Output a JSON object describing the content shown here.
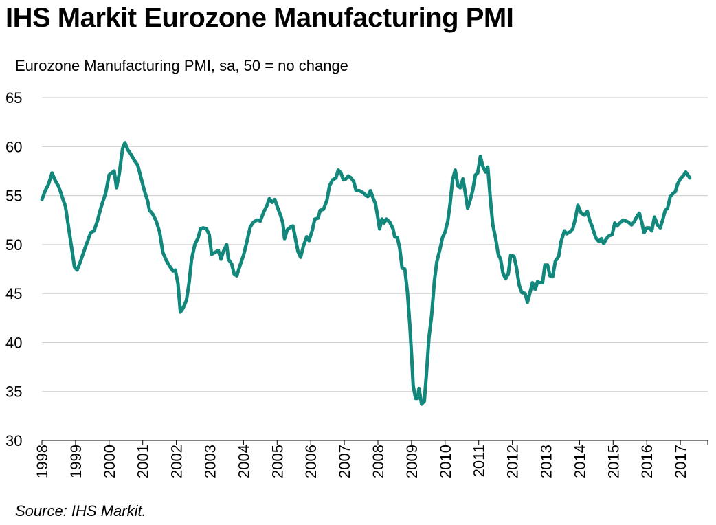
{
  "title": "IHS Markit Eurozone Manufacturing PMI",
  "subtitle": "Eurozone Manufacturing PMI, sa, 50 = no change",
  "source": "Source: IHS Markit.",
  "chart_data": {
    "type": "line",
    "title": "IHS Markit Eurozone Manufacturing PMI",
    "ylabel": "Eurozone Manufacturing PMI, sa, 50 = no change",
    "xlabel": "",
    "ylim": [
      30,
      65
    ],
    "yticks": [
      "30",
      "35",
      "40",
      "45",
      "50",
      "55",
      "60",
      "65"
    ],
    "xticks": [
      "1998",
      "1999",
      "2000",
      "2001",
      "2002",
      "2003",
      "2004",
      "2005",
      "2006",
      "2007",
      "2008",
      "2009",
      "2010",
      "2011",
      "2012",
      "2013",
      "2014",
      "2015",
      "2016",
      "2017"
    ],
    "xlim": [
      1998.0,
      2017.95
    ],
    "grid": "horizontal",
    "line_color": "#12877c",
    "series": [
      {
        "name": "",
        "points": [
          [
            1998.0,
            54.6
          ],
          [
            1998.1,
            55.5
          ],
          [
            1998.2,
            56.2
          ],
          [
            1998.3,
            57.3
          ],
          [
            1998.4,
            56.5
          ],
          [
            1998.5,
            55.9
          ],
          [
            1998.6,
            54.9
          ],
          [
            1998.7,
            53.9
          ],
          [
            1998.8,
            51.6
          ],
          [
            1998.9,
            49.3
          ],
          [
            1998.97,
            47.7
          ],
          [
            1999.05,
            47.4
          ],
          [
            1999.15,
            48.3
          ],
          [
            1999.3,
            49.8
          ],
          [
            1999.45,
            51.2
          ],
          [
            1999.55,
            51.4
          ],
          [
            1999.65,
            52.4
          ],
          [
            1999.75,
            53.7
          ],
          [
            1999.9,
            55.3
          ],
          [
            2000.0,
            57.1
          ],
          [
            2000.15,
            57.5
          ],
          [
            2000.22,
            55.8
          ],
          [
            2000.3,
            57.2
          ],
          [
            2000.4,
            59.8
          ],
          [
            2000.47,
            60.4
          ],
          [
            2000.55,
            59.7
          ],
          [
            2000.65,
            59.2
          ],
          [
            2000.75,
            58.6
          ],
          [
            2000.85,
            58.1
          ],
          [
            2000.95,
            56.8
          ],
          [
            2001.05,
            55.5
          ],
          [
            2001.15,
            54.4
          ],
          [
            2001.2,
            53.5
          ],
          [
            2001.3,
            53.1
          ],
          [
            2001.4,
            52.4
          ],
          [
            2001.5,
            51.3
          ],
          [
            2001.6,
            49.2
          ],
          [
            2001.7,
            48.4
          ],
          [
            2001.8,
            47.8
          ],
          [
            2001.9,
            47.3
          ],
          [
            2001.97,
            47.4
          ],
          [
            2002.05,
            46.0
          ],
          [
            2002.12,
            43.1
          ],
          [
            2002.2,
            43.5
          ],
          [
            2002.3,
            44.3
          ],
          [
            2002.38,
            46.1
          ],
          [
            2002.45,
            48.4
          ],
          [
            2002.55,
            50.0
          ],
          [
            2002.65,
            50.7
          ],
          [
            2002.72,
            51.6
          ],
          [
            2002.8,
            51.7
          ],
          [
            2002.9,
            51.6
          ],
          [
            2002.98,
            51.0
          ],
          [
            2003.05,
            49.0
          ],
          [
            2003.15,
            49.2
          ],
          [
            2003.25,
            49.4
          ],
          [
            2003.33,
            48.5
          ],
          [
            2003.4,
            49.3
          ],
          [
            2003.5,
            50.0
          ],
          [
            2003.55,
            48.5
          ],
          [
            2003.65,
            48.0
          ],
          [
            2003.72,
            47.0
          ],
          [
            2003.8,
            46.8
          ],
          [
            2003.9,
            47.9
          ],
          [
            2004.0,
            48.9
          ],
          [
            2004.1,
            50.3
          ],
          [
            2004.2,
            51.8
          ],
          [
            2004.3,
            52.3
          ],
          [
            2004.4,
            52.5
          ],
          [
            2004.5,
            52.4
          ],
          [
            2004.6,
            53.3
          ],
          [
            2004.7,
            54.0
          ],
          [
            2004.77,
            54.7
          ],
          [
            2004.85,
            54.3
          ],
          [
            2004.93,
            54.6
          ],
          [
            2005.0,
            53.9
          ],
          [
            2005.1,
            53.0
          ],
          [
            2005.17,
            52.2
          ],
          [
            2005.22,
            50.6
          ],
          [
            2005.3,
            51.5
          ],
          [
            2005.4,
            51.8
          ],
          [
            2005.47,
            51.9
          ],
          [
            2005.55,
            50.5
          ],
          [
            2005.62,
            49.3
          ],
          [
            2005.7,
            48.7
          ],
          [
            2005.78,
            49.8
          ],
          [
            2005.88,
            50.8
          ],
          [
            2005.95,
            50.4
          ],
          [
            2006.05,
            51.5
          ],
          [
            2006.12,
            52.6
          ],
          [
            2006.22,
            52.7
          ],
          [
            2006.28,
            53.5
          ],
          [
            2006.38,
            53.6
          ],
          [
            2006.48,
            54.5
          ],
          [
            2006.56,
            56.0
          ],
          [
            2006.65,
            56.6
          ],
          [
            2006.75,
            56.8
          ],
          [
            2006.82,
            57.6
          ],
          [
            2006.9,
            57.3
          ],
          [
            2006.97,
            56.6
          ],
          [
            2007.05,
            56.7
          ],
          [
            2007.12,
            57.0
          ],
          [
            2007.2,
            56.8
          ],
          [
            2007.28,
            56.4
          ],
          [
            2007.35,
            55.5
          ],
          [
            2007.45,
            55.5
          ],
          [
            2007.55,
            55.3
          ],
          [
            2007.62,
            55.1
          ],
          [
            2007.7,
            54.9
          ],
          [
            2007.78,
            55.5
          ],
          [
            2007.85,
            54.8
          ],
          [
            2007.93,
            54.1
          ],
          [
            2008.0,
            52.7
          ],
          [
            2008.05,
            51.6
          ],
          [
            2008.12,
            52.6
          ],
          [
            2008.18,
            52.2
          ],
          [
            2008.25,
            52.6
          ],
          [
            2008.35,
            52.3
          ],
          [
            2008.45,
            51.6
          ],
          [
            2008.5,
            50.8
          ],
          [
            2008.58,
            50.7
          ],
          [
            2008.65,
            49.6
          ],
          [
            2008.72,
            47.6
          ],
          [
            2008.8,
            47.5
          ],
          [
            2008.88,
            45.1
          ],
          [
            2008.95,
            41.7
          ],
          [
            2009.0,
            38.8
          ],
          [
            2009.05,
            35.6
          ],
          [
            2009.12,
            34.3
          ],
          [
            2009.18,
            34.3
          ],
          [
            2009.22,
            35.3
          ],
          [
            2009.3,
            33.7
          ],
          [
            2009.38,
            34.0
          ],
          [
            2009.44,
            36.6
          ],
          [
            2009.52,
            40.5
          ],
          [
            2009.6,
            42.8
          ],
          [
            2009.68,
            46.3
          ],
          [
            2009.75,
            48.2
          ],
          [
            2009.85,
            49.6
          ],
          [
            2009.92,
            50.7
          ],
          [
            2010.0,
            51.3
          ],
          [
            2010.08,
            52.4
          ],
          [
            2010.15,
            54.2
          ],
          [
            2010.22,
            56.6
          ],
          [
            2010.3,
            57.6
          ],
          [
            2010.38,
            56.0
          ],
          [
            2010.45,
            55.8
          ],
          [
            2010.53,
            56.7
          ],
          [
            2010.6,
            55.3
          ],
          [
            2010.67,
            53.7
          ],
          [
            2010.75,
            54.6
          ],
          [
            2010.82,
            55.5
          ],
          [
            2010.9,
            57.1
          ],
          [
            2010.97,
            57.3
          ],
          [
            2011.05,
            59.0
          ],
          [
            2011.12,
            58.0
          ],
          [
            2011.2,
            57.4
          ],
          [
            2011.27,
            57.9
          ],
          [
            2011.35,
            54.5
          ],
          [
            2011.42,
            52.0
          ],
          [
            2011.5,
            50.7
          ],
          [
            2011.58,
            49.0
          ],
          [
            2011.65,
            48.5
          ],
          [
            2011.72,
            47.1
          ],
          [
            2011.8,
            46.5
          ],
          [
            2011.88,
            47.0
          ],
          [
            2011.95,
            48.9
          ],
          [
            2012.05,
            48.8
          ],
          [
            2012.12,
            47.7
          ],
          [
            2012.2,
            45.9
          ],
          [
            2012.28,
            45.1
          ],
          [
            2012.38,
            45.0
          ],
          [
            2012.45,
            44.1
          ],
          [
            2012.52,
            45.0
          ],
          [
            2012.6,
            46.1
          ],
          [
            2012.68,
            45.4
          ],
          [
            2012.75,
            46.2
          ],
          [
            2012.82,
            46.1
          ],
          [
            2012.9,
            46.1
          ],
          [
            2012.97,
            47.9
          ],
          [
            2013.05,
            47.9
          ],
          [
            2013.12,
            46.8
          ],
          [
            2013.2,
            46.7
          ],
          [
            2013.28,
            48.3
          ],
          [
            2013.38,
            48.8
          ],
          [
            2013.45,
            50.3
          ],
          [
            2013.55,
            51.4
          ],
          [
            2013.62,
            51.1
          ],
          [
            2013.72,
            51.3
          ],
          [
            2013.8,
            51.6
          ],
          [
            2013.88,
            52.7
          ],
          [
            2013.95,
            54.0
          ],
          [
            2014.05,
            53.2
          ],
          [
            2014.15,
            53.0
          ],
          [
            2014.23,
            53.4
          ],
          [
            2014.3,
            52.5
          ],
          [
            2014.38,
            51.8
          ],
          [
            2014.48,
            50.7
          ],
          [
            2014.58,
            50.3
          ],
          [
            2014.65,
            50.6
          ],
          [
            2014.72,
            50.1
          ],
          [
            2014.8,
            50.6
          ],
          [
            2014.88,
            50.9
          ],
          [
            2014.97,
            51.0
          ],
          [
            2015.05,
            52.2
          ],
          [
            2015.12,
            51.9
          ],
          [
            2015.2,
            52.2
          ],
          [
            2015.3,
            52.5
          ],
          [
            2015.38,
            52.4
          ],
          [
            2015.45,
            52.3
          ],
          [
            2015.55,
            52.0
          ],
          [
            2015.62,
            52.3
          ],
          [
            2015.7,
            52.8
          ],
          [
            2015.78,
            53.2
          ],
          [
            2015.85,
            52.3
          ],
          [
            2015.92,
            51.2
          ],
          [
            2016.0,
            51.7
          ],
          [
            2016.08,
            51.7
          ],
          [
            2016.15,
            51.4
          ],
          [
            2016.23,
            52.8
          ],
          [
            2016.32,
            52.0
          ],
          [
            2016.4,
            51.7
          ],
          [
            2016.48,
            52.6
          ],
          [
            2016.55,
            53.5
          ],
          [
            2016.62,
            53.7
          ],
          [
            2016.7,
            54.9
          ],
          [
            2016.78,
            55.2
          ],
          [
            2016.85,
            55.4
          ],
          [
            2016.92,
            56.2
          ],
          [
            2017.0,
            56.7
          ],
          [
            2017.08,
            57.0
          ],
          [
            2017.16,
            57.4
          ],
          [
            2017.22,
            57.1
          ],
          [
            2017.28,
            56.8
          ]
        ]
      }
    ]
  }
}
